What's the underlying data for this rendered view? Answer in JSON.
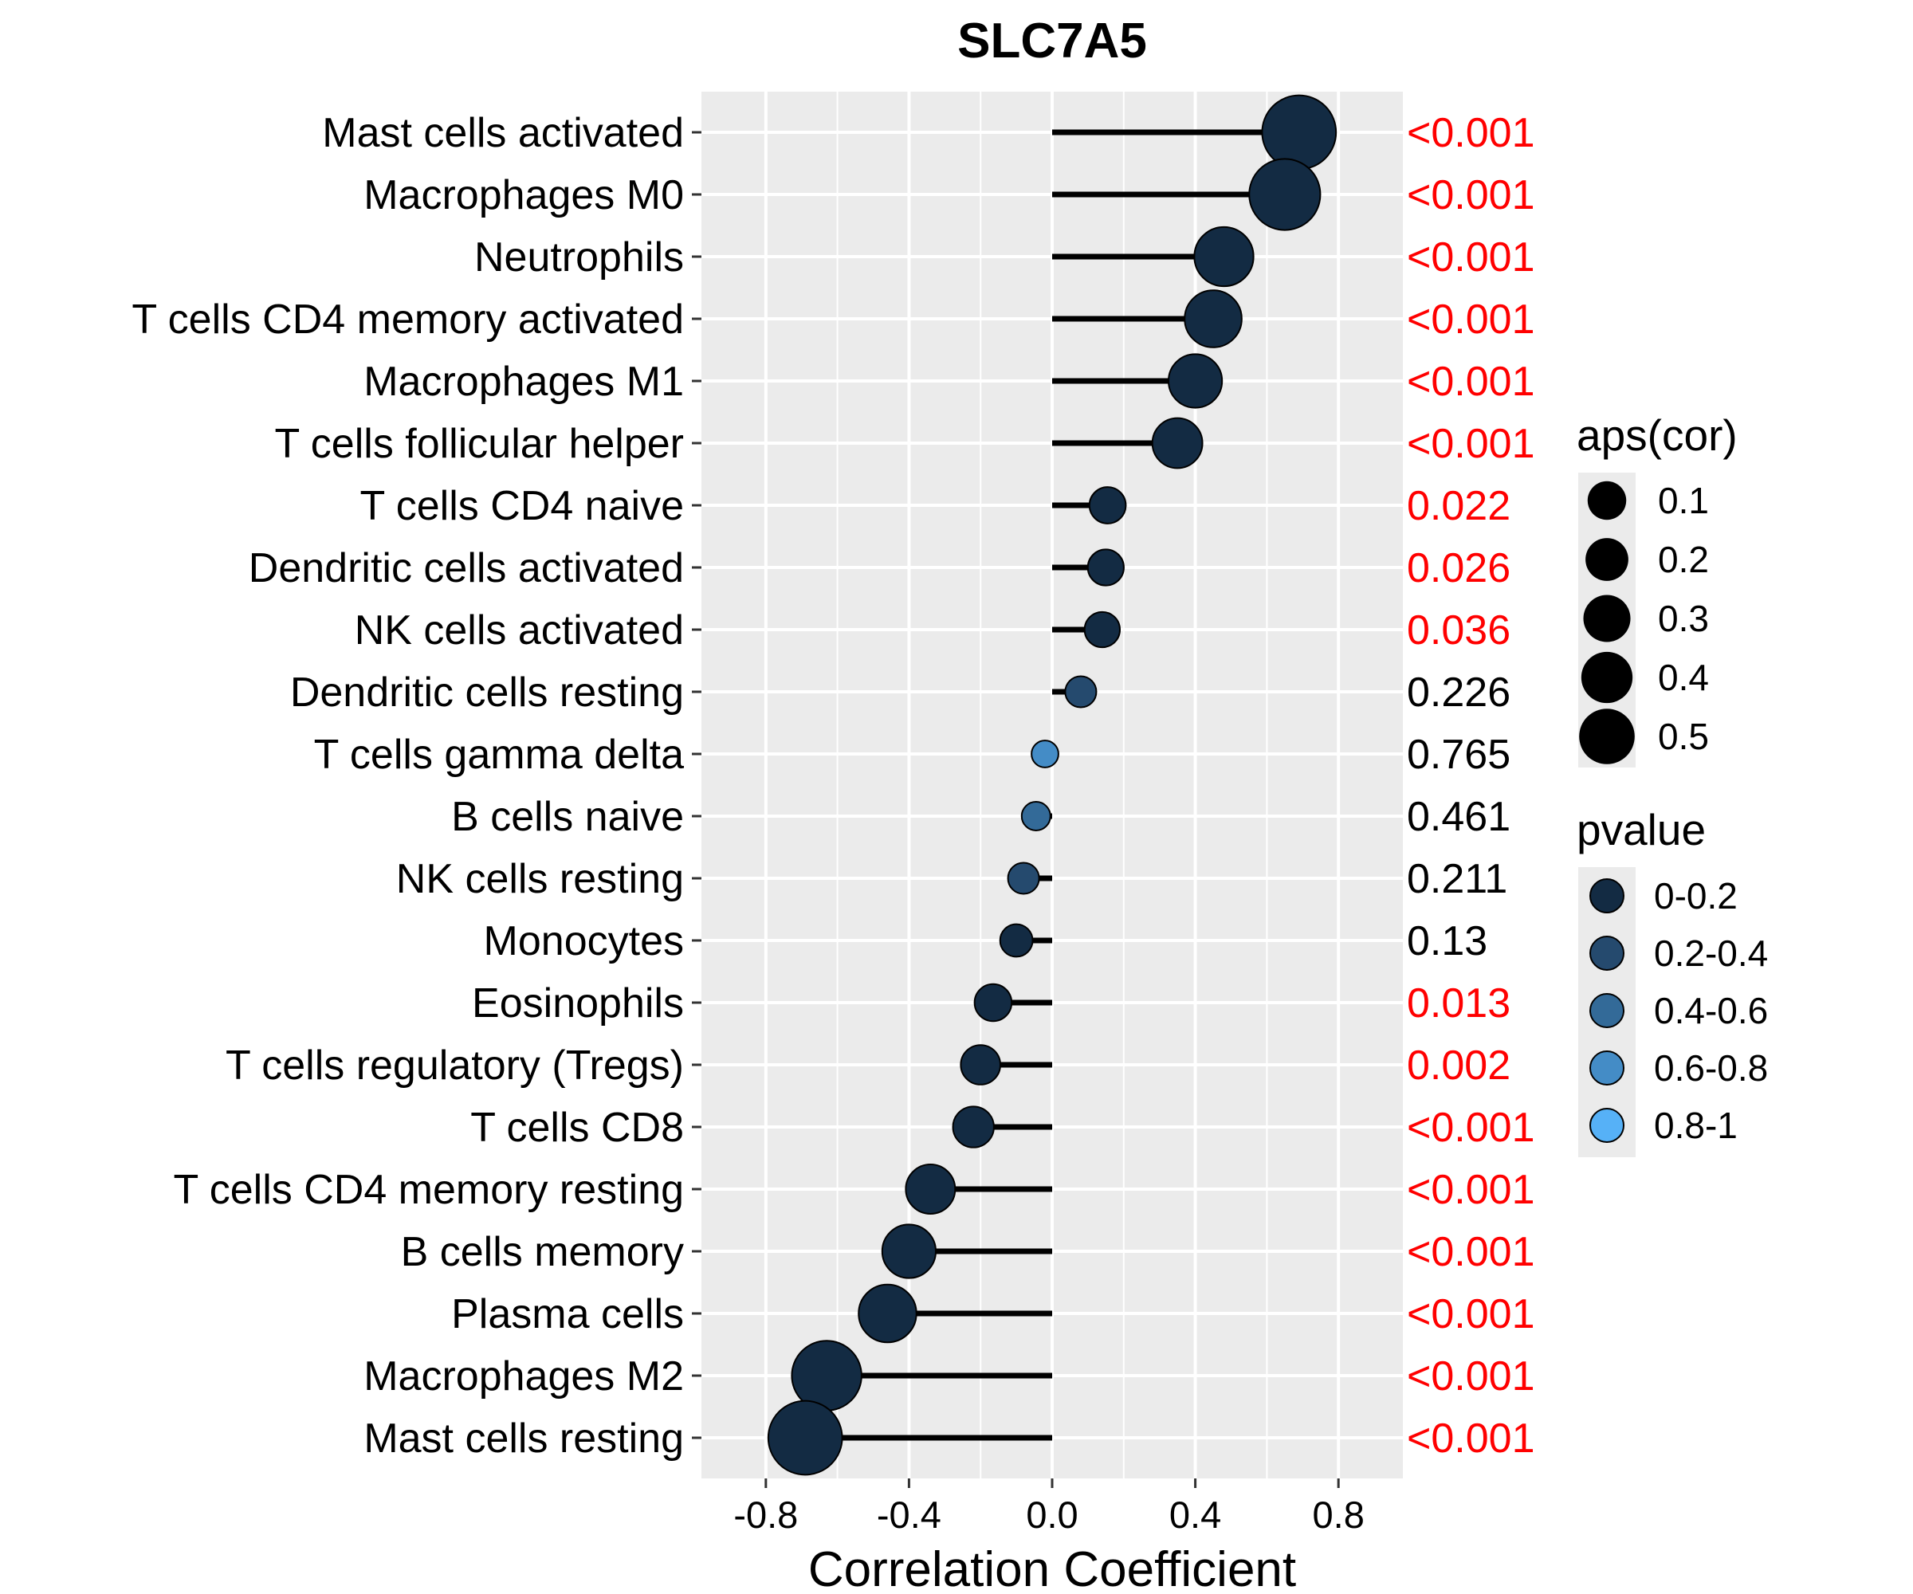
{
  "chart_data": {
    "type": "lollipop",
    "title": "SLC7A5",
    "xlabel": "Correlation Coefficient",
    "ylabel": "",
    "xlim": [
      -0.98,
      0.98
    ],
    "xticks": [
      -0.8,
      -0.4,
      0.0,
      0.4,
      0.8
    ],
    "xtick_labels": [
      "-0.8",
      "-0.4",
      "0.0",
      "0.4",
      "0.8"
    ],
    "grid": true,
    "panel_background": "#ebebeb",
    "line_color": "#000000",
    "significant_color": "#ff0000",
    "nonsignificant_color": "#000000",
    "rows": [
      {
        "label": "Mast cells activated",
        "cor": 0.69,
        "pvalue_label": "<0.001",
        "significant": true,
        "pvalue_group": "0-0.2"
      },
      {
        "label": "Macrophages M0",
        "cor": 0.65,
        "pvalue_label": "<0.001",
        "significant": true,
        "pvalue_group": "0-0.2"
      },
      {
        "label": "Neutrophils",
        "cor": 0.48,
        "pvalue_label": "<0.001",
        "significant": true,
        "pvalue_group": "0-0.2"
      },
      {
        "label": "T cells CD4 memory activated",
        "cor": 0.45,
        "pvalue_label": "<0.001",
        "significant": true,
        "pvalue_group": "0-0.2"
      },
      {
        "label": "Macrophages M1",
        "cor": 0.4,
        "pvalue_label": "<0.001",
        "significant": true,
        "pvalue_group": "0-0.2"
      },
      {
        "label": "T cells follicular helper",
        "cor": 0.35,
        "pvalue_label": "<0.001",
        "significant": true,
        "pvalue_group": "0-0.2"
      },
      {
        "label": "T cells CD4 naive",
        "cor": 0.155,
        "pvalue_label": "0.022",
        "significant": true,
        "pvalue_group": "0-0.2"
      },
      {
        "label": "Dendritic cells activated",
        "cor": 0.15,
        "pvalue_label": "0.026",
        "significant": true,
        "pvalue_group": "0-0.2"
      },
      {
        "label": "NK cells activated",
        "cor": 0.14,
        "pvalue_label": "0.036",
        "significant": true,
        "pvalue_group": "0-0.2"
      },
      {
        "label": "Dendritic cells resting",
        "cor": 0.08,
        "pvalue_label": "0.226",
        "significant": false,
        "pvalue_group": "0.2-0.4"
      },
      {
        "label": "T cells gamma delta",
        "cor": -0.02,
        "pvalue_label": "0.765",
        "significant": false,
        "pvalue_group": "0.6-0.8"
      },
      {
        "label": "B cells naive",
        "cor": -0.045,
        "pvalue_label": "0.461",
        "significant": false,
        "pvalue_group": "0.4-0.6"
      },
      {
        "label": "NK cells resting",
        "cor": -0.08,
        "pvalue_label": "0.211",
        "significant": false,
        "pvalue_group": "0.2-0.4"
      },
      {
        "label": "Monocytes",
        "cor": -0.1,
        "pvalue_label": "0.13",
        "significant": false,
        "pvalue_group": "0-0.2"
      },
      {
        "label": "Eosinophils",
        "cor": -0.165,
        "pvalue_label": "0.013",
        "significant": true,
        "pvalue_group": "0-0.2"
      },
      {
        "label": "T cells regulatory (Tregs)",
        "cor": -0.2,
        "pvalue_label": "0.002",
        "significant": true,
        "pvalue_group": "0-0.2"
      },
      {
        "label": "T cells CD8",
        "cor": -0.22,
        "pvalue_label": "<0.001",
        "significant": true,
        "pvalue_group": "0-0.2"
      },
      {
        "label": "T cells CD4 memory resting",
        "cor": -0.34,
        "pvalue_label": "<0.001",
        "significant": true,
        "pvalue_group": "0-0.2"
      },
      {
        "label": "B cells memory",
        "cor": -0.4,
        "pvalue_label": "<0.001",
        "significant": true,
        "pvalue_group": "0-0.2"
      },
      {
        "label": "Plasma cells",
        "cor": -0.46,
        "pvalue_label": "<0.001",
        "significant": true,
        "pvalue_group": "0-0.2"
      },
      {
        "label": "Macrophages M2",
        "cor": -0.63,
        "pvalue_label": "<0.001",
        "significant": true,
        "pvalue_group": "0-0.2"
      },
      {
        "label": "Mast cells resting",
        "cor": -0.69,
        "pvalue_label": "<0.001",
        "significant": true,
        "pvalue_group": "0-0.2"
      }
    ],
    "legend_size": {
      "title": "aps(cor)",
      "entries": [
        {
          "label": "0.1",
          "value": 0.1
        },
        {
          "label": "0.2",
          "value": 0.2
        },
        {
          "label": "0.3",
          "value": 0.3
        },
        {
          "label": "0.4",
          "value": 0.4
        },
        {
          "label": "0.5",
          "value": 0.5
        }
      ]
    },
    "legend_color": {
      "title": "pvalue",
      "entries": [
        {
          "label": "0-0.2",
          "color": "#132b43"
        },
        {
          "label": "0.2-0.4",
          "color": "#254a6e"
        },
        {
          "label": "0.4-0.6",
          "color": "#336a98"
        },
        {
          "label": "0.6-0.8",
          "color": "#448cc6"
        },
        {
          "label": "0.8-1",
          "color": "#56b1f7"
        }
      ]
    },
    "legend_placement": "right"
  }
}
